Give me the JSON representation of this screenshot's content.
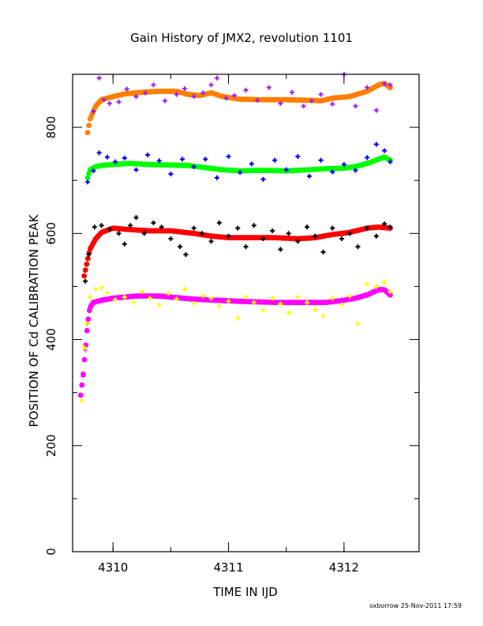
{
  "chart_data": {
    "type": "scatter",
    "title": "Gain History of JMX2, revolution 1101",
    "xlabel": "TIME IN IJD",
    "ylabel": "POSITION OF Cd CALIBRATION PEAK",
    "xlim": [
      4309.65,
      4312.65
    ],
    "ylim": [
      0,
      900
    ],
    "x_ticks": [
      4310,
      4311,
      4312
    ],
    "x_tick_labels": [
      "4310",
      "4311",
      "4312"
    ],
    "y_ticks": [
      0,
      200,
      400,
      600,
      800
    ],
    "y_tick_labels": [
      "0",
      "200",
      "400",
      "600",
      "800"
    ],
    "grid": false,
    "legend": "none",
    "series": [
      {
        "color": "#ff7f00",
        "role": "fit",
        "x": [
          4309.78,
          4309.8,
          4309.85,
          4309.9,
          4310.0,
          4310.1,
          4310.25,
          4310.4,
          4310.55,
          4310.65,
          4310.75,
          4310.85,
          4310.95,
          4311.1,
          4311.3,
          4311.5,
          4311.7,
          4311.8,
          4311.9,
          4312.05,
          4312.2,
          4312.3,
          4312.35,
          4312.4
        ],
        "y": [
          790,
          815,
          840,
          852,
          858,
          863,
          866,
          868,
          868,
          862,
          860,
          865,
          858,
          853,
          852,
          852,
          851,
          850,
          855,
          858,
          868,
          880,
          883,
          875
        ]
      },
      {
        "color": "#a020f0",
        "role": "data",
        "x": [
          4309.83,
          4309.88,
          4309.92,
          4309.97,
          4310.05,
          4310.12,
          4310.2,
          4310.28,
          4310.35,
          4310.45,
          4310.55,
          4310.62,
          4310.7,
          4310.78,
          4310.85,
          4310.9,
          4310.98,
          4311.05,
          4311.15,
          4311.25,
          4311.35,
          4311.45,
          4311.55,
          4311.65,
          4311.72,
          4311.8,
          4311.9,
          4312.0,
          4312.1,
          4312.2,
          4312.28,
          4312.35,
          4312.4
        ],
        "y": [
          830,
          893,
          852,
          845,
          848,
          872,
          858,
          865,
          880,
          850,
          862,
          873,
          858,
          865,
          880,
          893,
          855,
          860,
          870,
          851,
          875,
          845,
          866,
          840,
          850,
          862,
          844,
          900,
          840,
          875,
          832,
          882,
          880
        ]
      },
      {
        "color": "#00ff00",
        "role": "fit",
        "x": [
          4309.78,
          4309.8,
          4309.85,
          4309.9,
          4310.0,
          4310.15,
          4310.3,
          4310.5,
          4310.65,
          4310.8,
          4310.95,
          4311.1,
          4311.3,
          4311.5,
          4311.7,
          4311.85,
          4312.0,
          4312.1,
          4312.2,
          4312.3,
          4312.35,
          4312.4
        ],
        "y": [
          705,
          720,
          726,
          728,
          730,
          732,
          730,
          729,
          728,
          724,
          720,
          718,
          719,
          718,
          720,
          722,
          723,
          726,
          732,
          740,
          744,
          738
        ]
      },
      {
        "color": "#0000ff",
        "role": "data",
        "x": [
          4309.78,
          4309.83,
          4309.88,
          4309.95,
          4310.02,
          4310.1,
          4310.2,
          4310.3,
          4310.4,
          4310.5,
          4310.6,
          4310.7,
          4310.8,
          4310.9,
          4311.0,
          4311.1,
          4311.2,
          4311.3,
          4311.4,
          4311.5,
          4311.6,
          4311.7,
          4311.8,
          4311.9,
          4312.0,
          4312.1,
          4312.2,
          4312.28,
          4312.35,
          4312.4
        ],
        "y": [
          697,
          718,
          752,
          744,
          735,
          742,
          720,
          748,
          737,
          712,
          740,
          726,
          740,
          705,
          745,
          715,
          731,
          702,
          738,
          720,
          745,
          708,
          738,
          716,
          730,
          719,
          743,
          768,
          756,
          735
        ]
      },
      {
        "color": "#ff0000",
        "role": "fit",
        "x": [
          4309.75,
          4309.78,
          4309.8,
          4309.85,
          4309.9,
          4310.0,
          4310.1,
          4310.3,
          4310.5,
          4310.7,
          4310.85,
          4311.0,
          4311.2,
          4311.4,
          4311.6,
          4311.75,
          4311.9,
          4312.05,
          4312.2,
          4312.3,
          4312.4
        ],
        "y": [
          520,
          550,
          570,
          590,
          602,
          610,
          608,
          605,
          605,
          600,
          595,
          592,
          592,
          592,
          590,
          592,
          598,
          602,
          610,
          612,
          610
        ]
      },
      {
        "color": "#000000",
        "role": "data",
        "x": [
          4309.76,
          4309.79,
          4309.84,
          4309.9,
          4309.97,
          4310.05,
          4310.1,
          4310.15,
          4310.2,
          4310.27,
          4310.35,
          4310.42,
          4310.5,
          4310.58,
          4310.63,
          4310.7,
          4310.77,
          4310.85,
          4310.92,
          4311.0,
          4311.08,
          4311.15,
          4311.22,
          4311.3,
          4311.38,
          4311.45,
          4311.52,
          4311.6,
          4311.68,
          4311.75,
          4311.82,
          4311.9,
          4311.98,
          4312.05,
          4312.12,
          4312.2,
          4312.28,
          4312.35,
          4312.4
        ],
        "y": [
          510,
          560,
          612,
          615,
          608,
          600,
          580,
          615,
          630,
          600,
          620,
          612,
          590,
          575,
          560,
          610,
          600,
          585,
          620,
          595,
          610,
          575,
          615,
          590,
          605,
          570,
          600,
          585,
          612,
          595,
          565,
          610,
          590,
          600,
          575,
          610,
          595,
          618,
          612
        ]
      },
      {
        "color": "#ff00ff",
        "role": "fit",
        "x": [
          4309.72,
          4309.74,
          4309.76,
          4309.78,
          4309.8,
          4309.83,
          4309.9,
          4310.0,
          4310.2,
          4310.4,
          4310.5,
          4310.6,
          4310.7,
          4310.9,
          4311.1,
          4311.4,
          4311.7,
          4311.85,
          4312.0,
          4312.1,
          4312.2,
          4312.3,
          4312.35,
          4312.4
        ],
        "y": [
          295,
          330,
          380,
          430,
          460,
          470,
          474,
          478,
          482,
          482,
          480,
          478,
          476,
          474,
          472,
          470,
          470,
          470,
          474,
          478,
          484,
          494,
          494,
          484
        ]
      },
      {
        "color": "#ffff00",
        "role": "data",
        "x": [
          4309.73,
          4309.75,
          4309.77,
          4309.8,
          4309.85,
          4309.9,
          4309.95,
          4310.02,
          4310.1,
          4310.18,
          4310.25,
          4310.32,
          4310.4,
          4310.48,
          4310.55,
          4310.62,
          4310.7,
          4310.78,
          4310.85,
          4310.92,
          4311.0,
          4311.08,
          4311.15,
          4311.22,
          4311.3,
          4311.38,
          4311.45,
          4311.52,
          4311.6,
          4311.68,
          4311.75,
          4311.82,
          4311.9,
          4311.98,
          4312.05,
          4312.12,
          4312.2,
          4312.28,
          4312.35,
          4312.4
        ],
        "y": [
          285,
          385,
          430,
          480,
          495,
          498,
          488,
          475,
          480,
          470,
          490,
          478,
          465,
          487,
          476,
          495,
          468,
          482,
          478,
          463,
          472,
          440,
          480,
          470,
          455,
          478,
          467,
          450,
          480,
          470,
          456,
          445,
          478,
          466,
          482,
          430,
          505,
          500,
          508,
          490
        ]
      }
    ]
  },
  "footer": {
    "credit": "oxborrow 25-Nov-2011 17:59"
  }
}
